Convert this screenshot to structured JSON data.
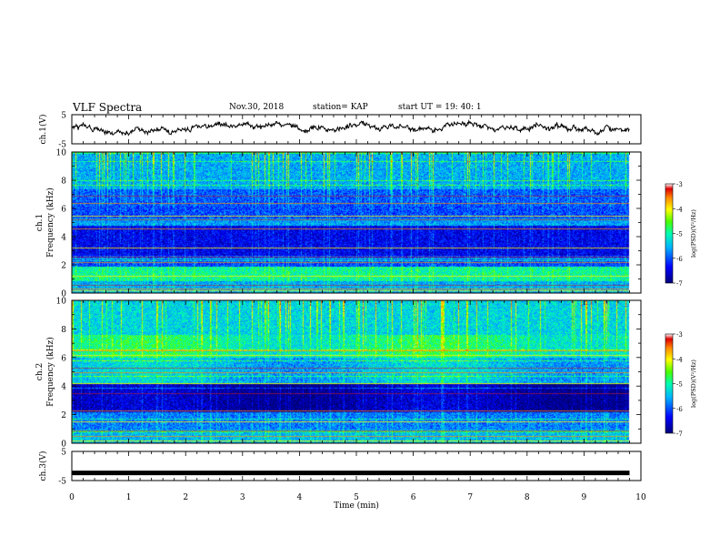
{
  "header": {
    "title": "VLF Spectra",
    "date": "Nov.30, 2018",
    "station": "station= KAP",
    "start_ut": "start UT =  19: 40: 1"
  },
  "chart_data": [
    {
      "type": "line",
      "name": "waveform-ch1",
      "ylabel": "ch.1(V)",
      "ylim": [
        -5,
        5
      ],
      "yticks": [
        "5",
        "-5"
      ],
      "xlim": [
        0,
        10
      ],
      "x_data_range": [
        0,
        9.8
      ],
      "description_values": "noisy waveform fluctuating between about -1.5 V and 2.2 V"
    },
    {
      "type": "heatmap",
      "name": "spectrogram-ch1",
      "ylabel": "ch.1",
      "ylabel2": "Frequency (kHz)",
      "ylim": [
        0,
        10
      ],
      "yticks": [
        "0",
        "2",
        "4",
        "6",
        "8",
        "10"
      ],
      "xlim": [
        0,
        10
      ],
      "x_data_range": [
        0,
        9.8
      ],
      "colorbar": {
        "label": "log(PSD)(V²/Hz)",
        "range": [
          -7,
          -3
        ],
        "ticks": [
          "-3",
          "-4",
          "-5",
          "-6",
          "-7"
        ]
      }
    },
    {
      "type": "heatmap",
      "name": "spectrogram-ch2",
      "ylabel": "ch.2",
      "ylabel2": "Frequency (kHz)",
      "ylim": [
        0,
        10
      ],
      "yticks": [
        "0",
        "2",
        "4",
        "6",
        "8",
        "10"
      ],
      "xlim": [
        0,
        10
      ],
      "x_data_range": [
        0,
        9.8
      ],
      "colorbar": {
        "label": "log(PSD)(V²/Hz)",
        "range": [
          -7,
          -3
        ],
        "ticks": [
          "-3",
          "-4",
          "-5",
          "-6",
          "-7"
        ]
      }
    },
    {
      "type": "line",
      "name": "waveform-ch3",
      "ylabel": "ch.3(V)",
      "ylim": [
        -5,
        5
      ],
      "yticks": [
        "5",
        "-5"
      ],
      "xlim": [
        0,
        10
      ],
      "x_data_range": [
        0,
        9.8
      ],
      "values_constant": -2.4
    }
  ],
  "x_axis": {
    "label": "Time (min)",
    "ticks": [
      "0",
      "1",
      "2",
      "3",
      "4",
      "5",
      "6",
      "7",
      "8",
      "9",
      "10"
    ]
  },
  "colors": {
    "colormap": [
      "#00007a",
      "#0000ff",
      "#00b4ff",
      "#00ffb0",
      "#4cff00",
      "#ffff00",
      "#ff8800",
      "#e00000",
      "#ffffff"
    ]
  }
}
